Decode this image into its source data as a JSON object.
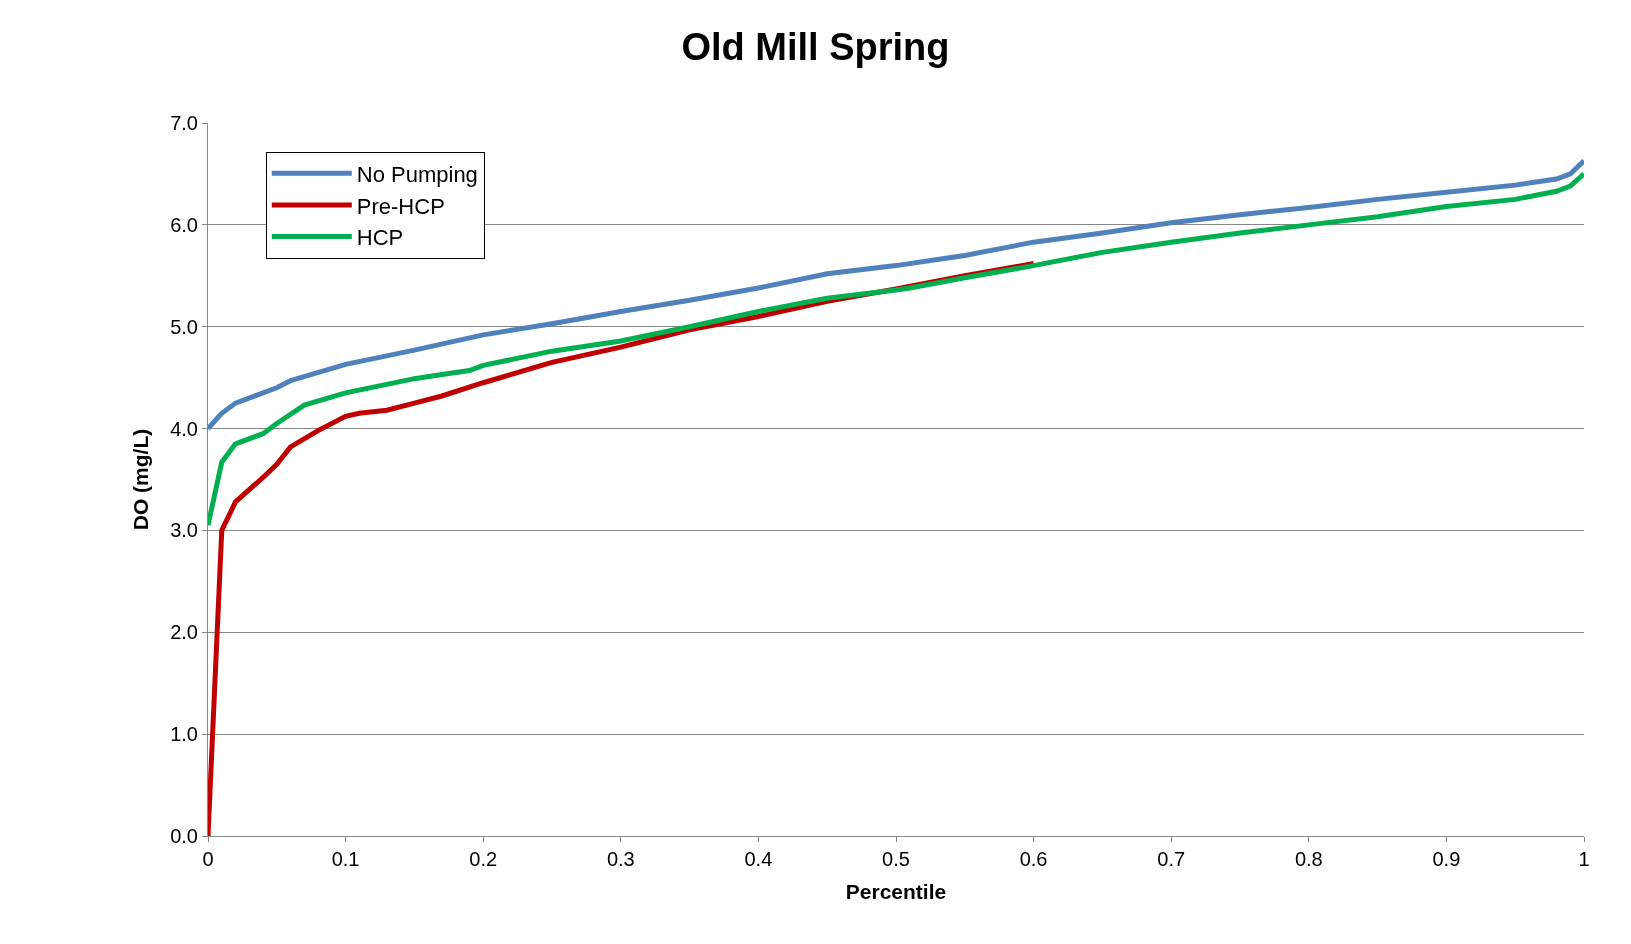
{
  "chart_data": {
    "type": "line",
    "title": "Old Mill Spring",
    "xlabel": "Percentile",
    "ylabel": "DO (mg/L)",
    "xlim": [
      0,
      1
    ],
    "xticks": [
      0,
      0.1,
      0.2,
      0.3,
      0.4,
      0.5,
      0.6,
      0.7,
      0.8,
      0.9,
      1
    ],
    "ylim": [
      0,
      7
    ],
    "yticks": [
      {
        "value": 0,
        "label": "0.0"
      },
      {
        "value": 1,
        "label": "1.0"
      },
      {
        "value": 2,
        "label": "2.0"
      },
      {
        "value": 3,
        "label": "3.0"
      },
      {
        "value": 4,
        "label": "4.0"
      },
      {
        "value": 5,
        "label": "5.0"
      },
      {
        "value": 6,
        "label": "6.0"
      },
      {
        "value": 7,
        "label": "7.0"
      }
    ],
    "grid": "y",
    "legend": "top left",
    "marker": "none",
    "line_style": "solid",
    "series": [
      {
        "name": "No Pumping",
        "color": "#4f81bd",
        "x": [
          0,
          0.01,
          0.02,
          0.05,
          0.06,
          0.1,
          0.15,
          0.2,
          0.25,
          0.3,
          0.35,
          0.4,
          0.45,
          0.5,
          0.55,
          0.6,
          0.65,
          0.7,
          0.75,
          0.8,
          0.85,
          0.9,
          0.95,
          0.98,
          0.99,
          1
        ],
        "values": [
          4.0,
          4.15,
          4.25,
          4.4,
          4.47,
          4.63,
          4.77,
          4.92,
          5.03,
          5.15,
          5.26,
          5.38,
          5.52,
          5.6,
          5.7,
          5.83,
          5.92,
          6.02,
          6.1,
          6.17,
          6.25,
          6.32,
          6.39,
          6.45,
          6.5,
          6.63
        ]
      },
      {
        "name": "Pre-HCP",
        "color": "#c00000",
        "x": [
          0,
          0.005,
          0.01,
          0.02,
          0.04,
          0.05,
          0.06,
          0.08,
          0.1,
          0.11,
          0.13,
          0.15,
          0.17,
          0.2,
          0.25,
          0.3,
          0.35,
          0.4,
          0.45,
          0.5,
          0.55,
          0.6
        ],
        "values": [
          0,
          1.5,
          3.0,
          3.28,
          3.52,
          3.65,
          3.82,
          3.98,
          4.12,
          4.15,
          4.18,
          4.25,
          4.32,
          4.45,
          4.65,
          4.8,
          4.97,
          5.1,
          5.25,
          5.37,
          5.5,
          5.62
        ]
      },
      {
        "name": "HCP",
        "color": "#00b050",
        "x": [
          0,
          0.01,
          0.02,
          0.04,
          0.05,
          0.07,
          0.1,
          0.15,
          0.17,
          0.19,
          0.2,
          0.25,
          0.3,
          0.35,
          0.4,
          0.45,
          0.5,
          0.51,
          0.55,
          0.6,
          0.65,
          0.7,
          0.75,
          0.8,
          0.85,
          0.9,
          0.95,
          0.98,
          0.99,
          1
        ],
        "values": [
          3.05,
          3.67,
          3.85,
          3.95,
          4.05,
          4.23,
          4.35,
          4.49,
          4.53,
          4.57,
          4.62,
          4.76,
          4.86,
          5.0,
          5.15,
          5.28,
          5.36,
          5.38,
          5.48,
          5.6,
          5.73,
          5.83,
          5.92,
          6.0,
          6.08,
          6.18,
          6.25,
          6.33,
          6.38,
          6.5
        ]
      }
    ]
  }
}
